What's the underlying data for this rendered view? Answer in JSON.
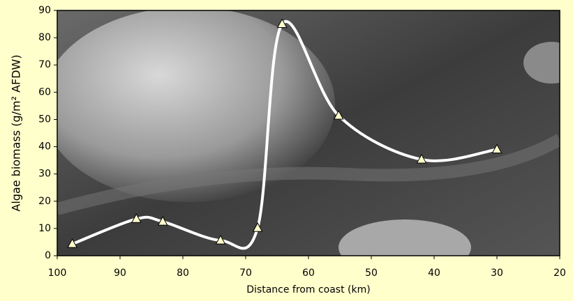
{
  "chart_data": {
    "type": "line",
    "x_label": "Distance from coast (km)",
    "y_label": "Algae biomass (g/m² AFDW)",
    "x": [
      97.6,
      87.4,
      83.2,
      74,
      68.1,
      64.2,
      55.2,
      42,
      30
    ],
    "series": [
      {
        "color": "#ffffff",
        "marker": "triangle",
        "marker_color": "#ffffcc",
        "values": [
          4.3,
          13.5,
          12.5,
          5.6,
          10.2,
          85,
          51.4,
          35.3,
          39
        ]
      }
    ],
    "xlim": [
      100,
      20
    ],
    "xticks": [
      100,
      90,
      80,
      70,
      60,
      50,
      40,
      30,
      20
    ],
    "ylim": [
      0,
      90
    ],
    "yticks": [
      0,
      10,
      20,
      30,
      40,
      50,
      60,
      70,
      80,
      90
    ],
    "smooth": true
  }
}
